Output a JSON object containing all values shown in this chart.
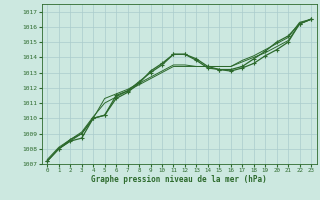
{
  "bg_color": "#cce8e0",
  "grid_color": "#aacccc",
  "line_color": "#2d6a2d",
  "title": "Graphe pression niveau de la mer (hPa)",
  "xlim": [
    -0.5,
    23.5
  ],
  "ylim": [
    1007,
    1017.5
  ],
  "xticks": [
    0,
    1,
    2,
    3,
    4,
    5,
    6,
    7,
    8,
    9,
    10,
    11,
    12,
    13,
    14,
    15,
    16,
    17,
    18,
    19,
    20,
    21,
    22,
    23
  ],
  "yticks": [
    1007,
    1008,
    1009,
    1010,
    1011,
    1012,
    1013,
    1014,
    1015,
    1016,
    1017
  ],
  "series": [
    {
      "x": [
        0,
        1,
        2,
        3,
        4,
        5,
        6,
        7,
        8,
        9,
        10,
        11,
        12,
        13,
        14,
        15,
        16,
        17,
        18,
        19,
        20,
        21,
        22,
        23
      ],
      "y": [
        1007.2,
        1008.0,
        1008.6,
        1009.0,
        1010.0,
        1010.2,
        1011.3,
        1011.7,
        1012.3,
        1013.1,
        1013.6,
        1014.2,
        1014.2,
        1013.9,
        1013.4,
        1013.2,
        1013.1,
        1013.3,
        1013.6,
        1014.1,
        1014.5,
        1015.0,
        1016.2,
        1016.5
      ],
      "marker": "+",
      "lw": 0.9
    },
    {
      "x": [
        0,
        1,
        2,
        3,
        4,
        5,
        6,
        7,
        8,
        9,
        10,
        11,
        12,
        13,
        14,
        15,
        16,
        17,
        18,
        19,
        20,
        21,
        22,
        23
      ],
      "y": [
        1007.2,
        1008.0,
        1008.5,
        1008.7,
        1010.0,
        1010.2,
        1011.5,
        1011.8,
        1012.4,
        1013.0,
        1013.5,
        1014.2,
        1014.2,
        1013.8,
        1013.3,
        1013.2,
        1013.2,
        1013.4,
        1013.9,
        1014.4,
        1015.0,
        1015.4,
        1016.2,
        1016.5
      ],
      "marker": "+",
      "lw": 0.9
    },
    {
      "x": [
        0,
        1,
        2,
        3,
        4,
        5,
        6,
        7,
        8,
        9,
        10,
        11,
        12,
        13,
        14,
        15,
        16,
        17,
        18,
        19,
        20,
        21,
        22,
        23
      ],
      "y": [
        1007.2,
        1008.0,
        1008.5,
        1009.0,
        1010.0,
        1011.3,
        1011.6,
        1011.9,
        1012.3,
        1012.7,
        1013.1,
        1013.5,
        1013.5,
        1013.4,
        1013.4,
        1013.4,
        1013.4,
        1013.7,
        1014.0,
        1014.3,
        1014.7,
        1015.1,
        1016.2,
        1016.5
      ],
      "marker": null,
      "lw": 0.7
    },
    {
      "x": [
        0,
        1,
        2,
        3,
        4,
        5,
        6,
        7,
        8,
        9,
        10,
        11,
        12,
        13,
        14,
        15,
        16,
        17,
        18,
        19,
        20,
        21,
        22,
        23
      ],
      "y": [
        1007.3,
        1008.1,
        1008.6,
        1009.1,
        1010.1,
        1011.0,
        1011.4,
        1011.8,
        1012.2,
        1012.6,
        1013.0,
        1013.4,
        1013.4,
        1013.4,
        1013.4,
        1013.4,
        1013.4,
        1013.8,
        1014.1,
        1014.5,
        1014.9,
        1015.3,
        1016.3,
        1016.5
      ],
      "marker": null,
      "lw": 0.7
    }
  ]
}
